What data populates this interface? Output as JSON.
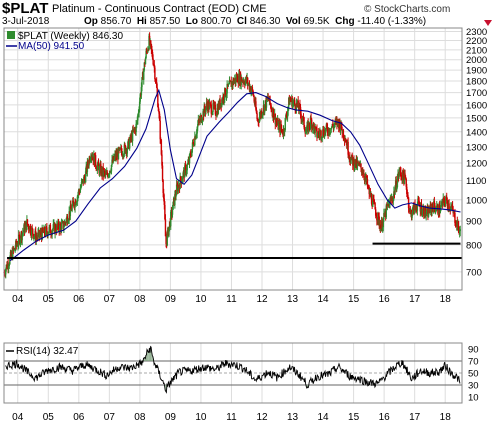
{
  "header": {
    "symbol": "$PLAT",
    "name": "Platinum - Continuous Contract (EOD)",
    "exchange": "CME",
    "credit": "© StockCharts.com",
    "date": "3-Jul-2018",
    "open_label": "Op",
    "open": "856.70",
    "high_label": "Hi",
    "high": "857.50",
    "low_label": "Lo",
    "low": "800.70",
    "close_label": "Cl",
    "close": "846.30",
    "vol_label": "Vol",
    "vol": "69.5K",
    "chg_label": "Chg",
    "chg": "-11.40 (-1.33%)"
  },
  "colors": {
    "up": "#2e8b2e",
    "down": "#cc0000",
    "ma": "#00008b",
    "rsi": "#000000",
    "rsi_fill": "#7aa07a",
    "grid": "#dddddd"
  },
  "chart_data": [
    {
      "type": "candlestick",
      "title": "$PLAT (Weekly) 846.30",
      "legend": [
        "$PLAT (Weekly) 846.30",
        "MA(50) 941.50"
      ],
      "x_tick_labels": [
        "04",
        "05",
        "06",
        "07",
        "08",
        "09",
        "10",
        "11",
        "12",
        "13",
        "14",
        "15",
        "16",
        "17",
        "18"
      ],
      "x_range": [
        2003.55,
        2018.55
      ],
      "y_scale": "log",
      "y_ticks": [
        700,
        800,
        900,
        1000,
        1100,
        1200,
        1300,
        1400,
        1500,
        1600,
        1700,
        1800,
        1900,
        2000,
        2100,
        2200,
        2300
      ],
      "y_range": [
        640,
        2340
      ],
      "horizontal_lines": [
        {
          "y": 750,
          "x_from": 2003.65,
          "x_to": 2018.55
        },
        {
          "y": 805,
          "x_from": 2015.62,
          "x_to": 2018.5
        }
      ],
      "price_path": [
        [
          2003.55,
          700
        ],
        [
          2003.8,
          760
        ],
        [
          2004.0,
          810
        ],
        [
          2004.3,
          890
        ],
        [
          2004.6,
          830
        ],
        [
          2005.0,
          860
        ],
        [
          2005.5,
          880
        ],
        [
          2005.9,
          1000
        ],
        [
          2006.2,
          1120
        ],
        [
          2006.4,
          1270
        ],
        [
          2006.6,
          1180
        ],
        [
          2006.9,
          1120
        ],
        [
          2007.2,
          1240
        ],
        [
          2007.6,
          1300
        ],
        [
          2007.9,
          1450
        ],
        [
          2008.2,
          2050
        ],
        [
          2008.3,
          2190
        ],
        [
          2008.45,
          1980
        ],
        [
          2008.6,
          1600
        ],
        [
          2008.75,
          1100
        ],
        [
          2008.85,
          800
        ],
        [
          2009.2,
          1050
        ],
        [
          2009.6,
          1200
        ],
        [
          2009.9,
          1450
        ],
        [
          2010.2,
          1600
        ],
        [
          2010.5,
          1550
        ],
        [
          2010.8,
          1700
        ],
        [
          2011.0,
          1780
        ],
        [
          2011.2,
          1830
        ],
        [
          2011.5,
          1800
        ],
        [
          2011.7,
          1700
        ],
        [
          2011.85,
          1480
        ],
        [
          2012.2,
          1650
        ],
        [
          2012.5,
          1450
        ],
        [
          2012.7,
          1400
        ],
        [
          2012.9,
          1640
        ],
        [
          2013.2,
          1580
        ],
        [
          2013.45,
          1400
        ],
        [
          2013.6,
          1480
        ],
        [
          2013.8,
          1380
        ],
        [
          2014.2,
          1420
        ],
        [
          2014.5,
          1470
        ],
        [
          2014.7,
          1380
        ],
        [
          2014.9,
          1220
        ],
        [
          2015.3,
          1160
        ],
        [
          2015.5,
          1040
        ],
        [
          2015.9,
          870
        ],
        [
          2016.1,
          960
        ],
        [
          2016.3,
          1020
        ],
        [
          2016.5,
          1150
        ],
        [
          2016.7,
          1100
        ],
        [
          2016.85,
          930
        ],
        [
          2017.1,
          980
        ],
        [
          2017.4,
          930
        ],
        [
          2017.6,
          970
        ],
        [
          2017.8,
          950
        ],
        [
          2018.0,
          1000
        ],
        [
          2018.2,
          960
        ],
        [
          2018.4,
          880
        ],
        [
          2018.5,
          846.3
        ]
      ],
      "series": [
        {
          "name": "MA(50) 941.50",
          "points": [
            [
              2003.75,
              740
            ],
            [
              2004.2,
              780
            ],
            [
              2004.6,
              815
            ],
            [
              2005.0,
              840
            ],
            [
              2005.5,
              860
            ],
            [
              2005.9,
              900
            ],
            [
              2006.3,
              980
            ],
            [
              2006.7,
              1060
            ],
            [
              2007.1,
              1110
            ],
            [
              2007.5,
              1180
            ],
            [
              2007.9,
              1290
            ],
            [
              2008.2,
              1420
            ],
            [
              2008.5,
              1650
            ],
            [
              2008.62,
              1720
            ],
            [
              2008.8,
              1560
            ],
            [
              2009.0,
              1280
            ],
            [
              2009.2,
              1110
            ],
            [
              2009.45,
              1080
            ],
            [
              2009.7,
              1130
            ],
            [
              2009.9,
              1220
            ],
            [
              2010.2,
              1370
            ],
            [
              2010.6,
              1470
            ],
            [
              2010.9,
              1540
            ],
            [
              2011.2,
              1620
            ],
            [
              2011.5,
              1690
            ],
            [
              2011.8,
              1700
            ],
            [
              2012.1,
              1670
            ],
            [
              2012.5,
              1610
            ],
            [
              2012.8,
              1580
            ],
            [
              2013.1,
              1560
            ],
            [
              2013.5,
              1550
            ],
            [
              2013.9,
              1520
            ],
            [
              2014.3,
              1480
            ],
            [
              2014.6,
              1460
            ],
            [
              2014.9,
              1400
            ],
            [
              2015.2,
              1310
            ],
            [
              2015.5,
              1190
            ],
            [
              2015.8,
              1080
            ],
            [
              2016.1,
              1000
            ],
            [
              2016.35,
              960
            ],
            [
              2016.6,
              975
            ],
            [
              2016.9,
              985
            ],
            [
              2017.2,
              970
            ],
            [
              2017.5,
              960
            ],
            [
              2017.9,
              955
            ],
            [
              2018.2,
              950
            ],
            [
              2018.5,
              941.5
            ]
          ]
        }
      ]
    },
    {
      "type": "line",
      "title": "RSI(14) 32.47",
      "legend": [
        "RSI(14) 32.47"
      ],
      "x_tick_labels": [
        "04",
        "05",
        "06",
        "07",
        "08",
        "09",
        "10",
        "11",
        "12",
        "13",
        "14",
        "15",
        "16",
        "17",
        "18"
      ],
      "y_ticks": [
        10,
        30,
        50,
        70,
        90
      ],
      "y_range": [
        0,
        100
      ],
      "reference_lines": [
        30,
        50,
        70
      ],
      "series": [
        {
          "name": "RSI(14) 32.47",
          "points": [
            [
              2003.6,
              62
            ],
            [
              2004.0,
              66
            ],
            [
              2004.3,
              52
            ],
            [
              2004.6,
              42
            ],
            [
              2005.0,
              55
            ],
            [
              2005.4,
              60
            ],
            [
              2005.8,
              54
            ],
            [
              2006.2,
              64
            ],
            [
              2006.5,
              58
            ],
            [
              2006.9,
              46
            ],
            [
              2007.3,
              60
            ],
            [
              2007.7,
              58
            ],
            [
              2008.1,
              68
            ],
            [
              2008.2,
              80
            ],
            [
              2008.35,
              92
            ],
            [
              2008.45,
              70
            ],
            [
              2008.7,
              42
            ],
            [
              2008.85,
              22
            ],
            [
              2009.0,
              34
            ],
            [
              2009.3,
              52
            ],
            [
              2009.7,
              54
            ],
            [
              2010.1,
              60
            ],
            [
              2010.5,
              56
            ],
            [
              2010.8,
              66
            ],
            [
              2011.1,
              64
            ],
            [
              2011.4,
              58
            ],
            [
              2011.8,
              38
            ],
            [
              2012.2,
              52
            ],
            [
              2012.5,
              42
            ],
            [
              2012.9,
              60
            ],
            [
              2013.2,
              48
            ],
            [
              2013.5,
              30
            ],
            [
              2013.8,
              44
            ],
            [
              2014.2,
              48
            ],
            [
              2014.5,
              60
            ],
            [
              2014.9,
              44
            ],
            [
              2015.2,
              40
            ],
            [
              2015.5,
              34
            ],
            [
              2015.8,
              32
            ],
            [
              2016.1,
              48
            ],
            [
              2016.4,
              62
            ],
            [
              2016.6,
              68
            ],
            [
              2016.9,
              40
            ],
            [
              2017.2,
              54
            ],
            [
              2017.5,
              50
            ],
            [
              2017.8,
              52
            ],
            [
              2018.0,
              62
            ],
            [
              2018.2,
              50
            ],
            [
              2018.4,
              42
            ],
            [
              2018.5,
              32.47
            ]
          ]
        }
      ]
    }
  ]
}
